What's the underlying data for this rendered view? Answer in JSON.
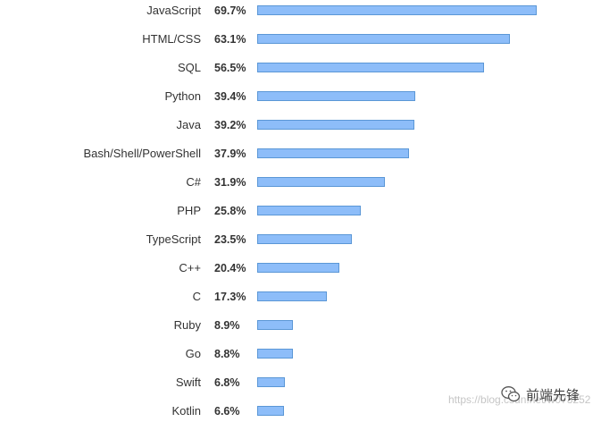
{
  "chart_data": {
    "type": "bar",
    "orientation": "horizontal",
    "title": "",
    "xlabel": "",
    "ylabel": "",
    "xlim": [
      0,
      70
    ],
    "grid": false,
    "categories": [
      "JavaScript",
      "HTML/CSS",
      "SQL",
      "Python",
      "Java",
      "Bash/Shell/PowerShell",
      "C#",
      "PHP",
      "TypeScript",
      "C++",
      "C",
      "Ruby",
      "Go",
      "Swift",
      "Kotlin"
    ],
    "values": [
      69.7,
      63.1,
      56.5,
      39.4,
      39.2,
      37.9,
      31.9,
      25.8,
      23.5,
      20.4,
      17.3,
      8.9,
      8.8,
      6.8,
      6.6
    ],
    "value_labels": [
      "69.7%",
      "63.1%",
      "56.5%",
      "39.4%",
      "39.2%",
      "37.9%",
      "31.9%",
      "25.8%",
      "23.5%",
      "20.4%",
      "17.3%",
      "8.9%",
      "8.8%",
      "6.8%",
      "6.6%"
    ],
    "bar_fill": "#8dbdf9",
    "bar_border": "#5b97d6"
  },
  "watermark": {
    "url_text": "https://blog.csdn.net/w073252",
    "brand_text": "前端先锋",
    "icon": "wechat-icon"
  }
}
